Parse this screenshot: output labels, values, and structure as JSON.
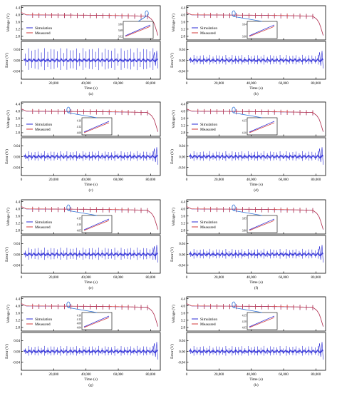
{
  "colors": {
    "simulation": "#2b2bd6",
    "measured": "#d23a3a",
    "error": "#2b2bd6",
    "axis": "#000000",
    "inset_arrow": "#2b6fd6"
  },
  "common": {
    "time_label": "Time (s)",
    "voltage_label": "Voltage (V)",
    "error_label": "Error (V)",
    "x_ticks": [
      "0",
      "20,000",
      "40,000",
      "60,000",
      "80,000"
    ],
    "x_tick_values": [
      0,
      20000,
      40000,
      60000,
      80000
    ],
    "xlim": [
      0,
      86000
    ],
    "voltage_ticks": [
      "4.4",
      "4.0",
      "3.6",
      "3.2",
      "2.8"
    ],
    "voltage_tick_values": [
      4.4,
      4.0,
      3.6,
      3.2,
      2.8
    ],
    "voltage_ylim": [
      2.6,
      4.5
    ],
    "error_ticks": [
      "0.04",
      "0.00",
      "-0.04"
    ],
    "error_tick_values": [
      0.04,
      0.0,
      -0.04
    ],
    "error_ylim": [
      -0.07,
      0.07
    ],
    "legend": [
      "Simulation",
      "Measured"
    ]
  },
  "chart_data": [
    {
      "type": "line",
      "label": "(a)",
      "inset_ticks": [
        "3.80",
        "3.68",
        "3.62"
      ],
      "inset_pos": "center",
      "series": [
        {
          "name": "Simulation",
          "x": [
            0,
            3000,
            20000,
            40000,
            60000,
            78000,
            80500,
            82000,
            83000,
            84500
          ],
          "values": [
            4.12,
            3.99,
            3.98,
            3.97,
            3.95,
            3.92,
            3.75,
            3.55,
            3.3,
            2.85
          ]
        },
        {
          "name": "Measured",
          "x": [
            0,
            3000,
            20000,
            40000,
            60000,
            78000,
            80500,
            82000,
            83000,
            84500
          ],
          "values": [
            4.12,
            3.99,
            3.98,
            3.97,
            3.95,
            3.92,
            3.75,
            3.55,
            3.3,
            2.85
          ]
        }
      ],
      "error_amplitude": 0.045
    },
    {
      "type": "line",
      "label": "(b)",
      "inset_ticks": [
        "3.64",
        "3.60"
      ],
      "inset_pos": "left",
      "series": [
        {
          "name": "Simulation",
          "x": [
            0,
            3000,
            20000,
            40000,
            60000,
            78000,
            80500,
            82000,
            83000,
            84500
          ],
          "values": [
            4.12,
            3.99,
            3.98,
            3.97,
            3.95,
            3.92,
            3.75,
            3.55,
            3.3,
            2.85
          ]
        },
        {
          "name": "Measured",
          "x": [
            0,
            3000,
            20000,
            40000,
            60000,
            78000,
            80500,
            82000,
            83000,
            84500
          ],
          "values": [
            4.12,
            3.99,
            3.98,
            3.97,
            3.95,
            3.92,
            3.75,
            3.55,
            3.3,
            2.85
          ]
        }
      ],
      "error_amplitude": 0.02
    },
    {
      "type": "line",
      "label": "(c)",
      "inset_ticks": [
        "4.16",
        "4.12",
        "4.08"
      ],
      "inset_pos": "left",
      "series": [
        {
          "name": "Simulation",
          "x": [
            0,
            3000,
            20000,
            40000,
            60000,
            78000,
            80500,
            82000,
            83000,
            84500
          ],
          "values": [
            4.12,
            3.99,
            3.98,
            3.97,
            3.95,
            3.92,
            3.75,
            3.55,
            3.3,
            2.85
          ]
        },
        {
          "name": "Measured",
          "x": [
            0,
            3000,
            20000,
            40000,
            60000,
            78000,
            80500,
            82000,
            83000,
            84500
          ],
          "values": [
            4.12,
            3.99,
            3.98,
            3.97,
            3.95,
            3.92,
            3.75,
            3.55,
            3.3,
            2.85
          ]
        }
      ],
      "error_amplitude": 0.02
    },
    {
      "type": "line",
      "label": "(d)",
      "inset_ticks": [
        "4.15",
        "4.10"
      ],
      "inset_pos": "left",
      "series": [
        {
          "name": "Simulation",
          "x": [
            0,
            3000,
            20000,
            40000,
            60000,
            78000,
            80500,
            82000,
            83000,
            84500
          ],
          "values": [
            4.12,
            3.99,
            3.98,
            3.97,
            3.95,
            3.92,
            3.75,
            3.55,
            3.3,
            2.85
          ]
        },
        {
          "name": "Measured",
          "x": [
            0,
            3000,
            20000,
            40000,
            60000,
            78000,
            80500,
            82000,
            83000,
            84500
          ],
          "values": [
            4.12,
            3.99,
            3.98,
            3.97,
            3.95,
            3.92,
            3.75,
            3.55,
            3.3,
            2.85
          ]
        }
      ],
      "error_amplitude": 0.02
    },
    {
      "type": "line",
      "label": "(e)",
      "inset_ticks": [
        "4.15",
        "4.10",
        "4.05"
      ],
      "inset_pos": "left",
      "series": [
        {
          "name": "Simulation",
          "x": [
            0,
            3000,
            20000,
            40000,
            60000,
            78000,
            80500,
            82000,
            83000,
            84500
          ],
          "values": [
            4.12,
            3.99,
            3.98,
            3.97,
            3.95,
            3.92,
            3.75,
            3.55,
            3.3,
            2.85
          ]
        },
        {
          "name": "Measured",
          "x": [
            0,
            3000,
            20000,
            40000,
            60000,
            78000,
            80500,
            82000,
            83000,
            84500
          ],
          "values": [
            4.12,
            3.99,
            3.98,
            3.97,
            3.95,
            3.92,
            3.75,
            3.55,
            3.3,
            2.85
          ]
        }
      ],
      "error_amplitude": 0.025
    },
    {
      "type": "line",
      "label": "(f)",
      "inset_ticks": [
        "3.85",
        "3.80"
      ],
      "inset_pos": "left",
      "series": [
        {
          "name": "Simulation",
          "x": [
            0,
            3000,
            20000,
            40000,
            60000,
            78000,
            80500,
            82000,
            83000,
            84500
          ],
          "values": [
            4.12,
            3.99,
            3.98,
            3.97,
            3.95,
            3.92,
            3.75,
            3.55,
            3.3,
            2.85
          ]
        },
        {
          "name": "Measured",
          "x": [
            0,
            3000,
            20000,
            40000,
            60000,
            78000,
            80500,
            82000,
            83000,
            84500
          ],
          "values": [
            4.12,
            3.99,
            3.98,
            3.97,
            3.95,
            3.92,
            3.75,
            3.55,
            3.3,
            2.85
          ]
        }
      ],
      "error_amplitude": 0.02
    },
    {
      "type": "line",
      "label": "(g)",
      "inset_ticks": [
        "4.16",
        "4.12",
        "4.08",
        "4.04"
      ],
      "inset_pos": "left",
      "series": [
        {
          "name": "Simulation",
          "x": [
            0,
            3000,
            20000,
            40000,
            60000,
            78000,
            80500,
            82000,
            83000,
            84500
          ],
          "values": [
            4.12,
            3.99,
            3.98,
            3.97,
            3.95,
            3.92,
            3.75,
            3.55,
            3.3,
            2.85
          ]
        },
        {
          "name": "Measured",
          "x": [
            0,
            3000,
            20000,
            40000,
            60000,
            78000,
            80500,
            82000,
            83000,
            84500
          ],
          "values": [
            4.12,
            3.99,
            3.98,
            3.97,
            3.95,
            3.92,
            3.75,
            3.55,
            3.3,
            2.85
          ]
        }
      ],
      "error_amplitude": 0.02
    },
    {
      "type": "line",
      "label": "(h)",
      "inset_ticks": [
        "4.15",
        "4.10",
        "4.05"
      ],
      "inset_pos": "left",
      "series": [
        {
          "name": "Simulation",
          "x": [
            0,
            3000,
            20000,
            40000,
            60000,
            78000,
            80500,
            82000,
            83000,
            84500
          ],
          "values": [
            4.12,
            3.99,
            3.98,
            3.97,
            3.95,
            3.92,
            3.75,
            3.55,
            3.3,
            2.85
          ]
        },
        {
          "name": "Measured",
          "x": [
            0,
            3000,
            20000,
            40000,
            60000,
            78000,
            80500,
            82000,
            83000,
            84500
          ],
          "values": [
            4.12,
            3.99,
            3.98,
            3.97,
            3.95,
            3.92,
            3.75,
            3.55,
            3.3,
            2.85
          ]
        }
      ],
      "error_amplitude": 0.02
    }
  ]
}
